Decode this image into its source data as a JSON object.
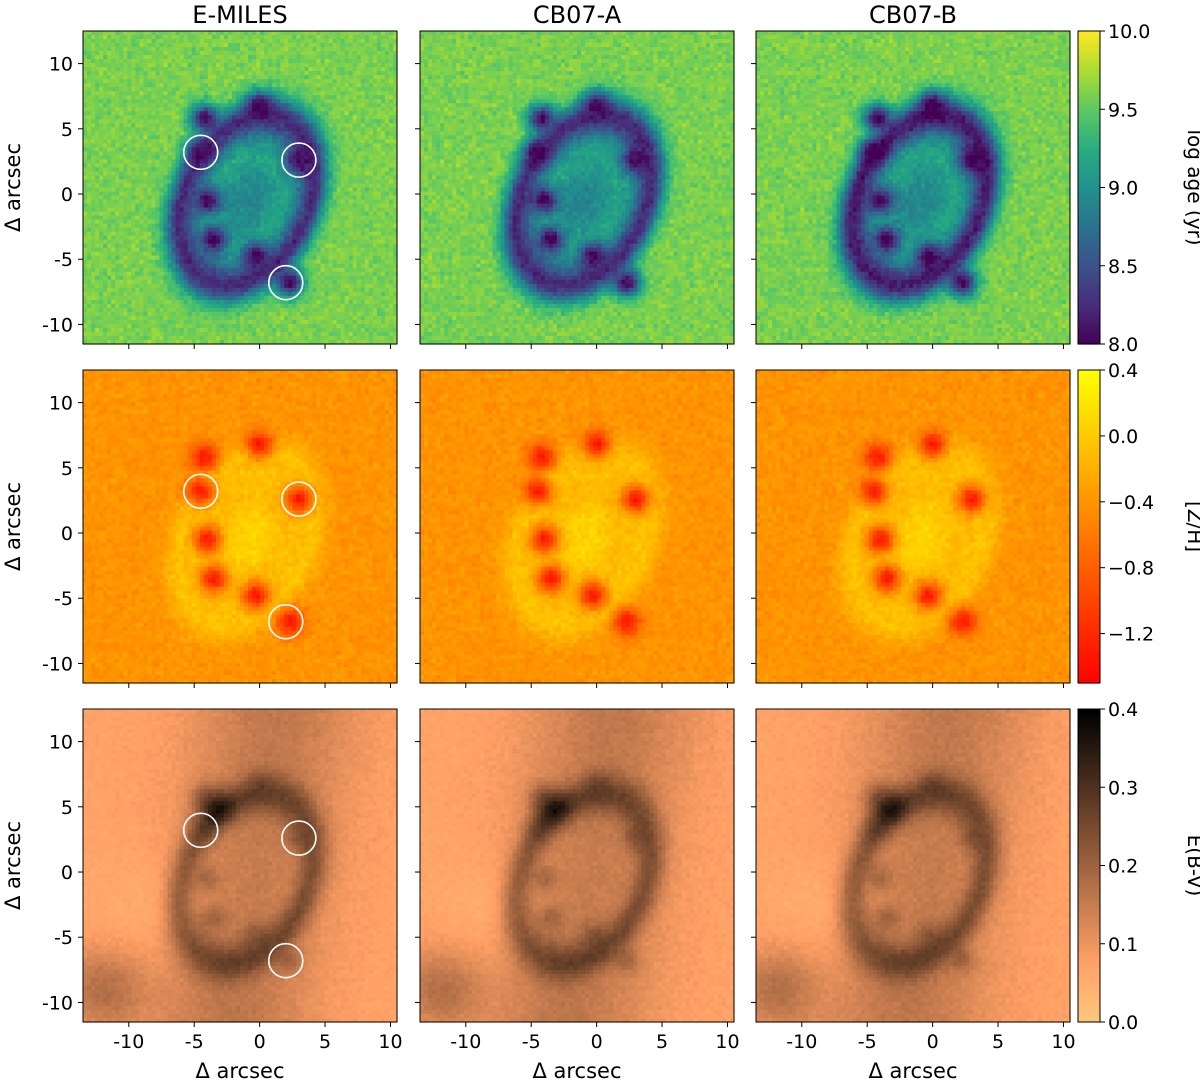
{
  "chart_data": {
    "type": "heatmap",
    "columns": [
      "E-MILES",
      "CB07-A",
      "CB07-B"
    ],
    "rows": [
      {
        "quantity": "log age",
        "colorbar_label": "log age (yr)",
        "colormap": "viridis",
        "vmin": 8.0,
        "vmax": 10.0,
        "ticks": [
          8.0,
          8.5,
          9.0,
          9.5,
          10.0
        ],
        "tick_labels": [
          "8.0",
          "8.5",
          "9.0",
          "9.5",
          "10.0"
        ],
        "background_level": 0.8,
        "center_level": 0.45,
        "ring_level": 0.12,
        "blob_level": 0.0
      },
      {
        "quantity": "[Z/H]",
        "colorbar_label": "[Z/H]",
        "colormap": "autumn",
        "vmin": -1.5,
        "vmax": 0.4,
        "ticks": [
          -1.2,
          -0.8,
          -0.4,
          0.0,
          0.4
        ],
        "tick_labels": [
          "−1.2",
          "−0.8",
          "−0.4",
          "0.0",
          "0.4"
        ],
        "background_level": 0.58,
        "center_level": 0.84,
        "ring_level": 0.76,
        "blob_level": 0.1
      },
      {
        "quantity": "E(B-V)",
        "colorbar_label": "E(B-V)",
        "colormap": "copper_r",
        "vmin": 0.0,
        "vmax": 0.4,
        "ticks": [
          0.0,
          0.1,
          0.2,
          0.3,
          0.4
        ],
        "tick_labels": [
          "0.0",
          "0.1",
          "0.2",
          "0.3",
          "0.4"
        ],
        "background_level": 0.18,
        "center_level": 0.42,
        "ring_level": 0.55,
        "blob_level": 0.85
      }
    ],
    "x_range": [
      -13.5,
      10.5
    ],
    "y_range": [
      -11.5,
      12.5
    ],
    "xticks": [
      -10,
      -5,
      0,
      5,
      10
    ],
    "yticks": [
      -10,
      -5,
      0,
      5,
      10
    ],
    "xlabel": "Δ arcsec",
    "ylabel": "Δ arcsec",
    "ring": {
      "center": [
        -1,
        -0.5
      ],
      "semi_axes": [
        4.7,
        6.8
      ],
      "rotation_deg": -25
    },
    "marked_regions": [
      {
        "x": -4.5,
        "y": 3.2
      },
      {
        "x": 3.0,
        "y": 2.6
      },
      {
        "x": 2.0,
        "y": -6.8
      }
    ],
    "marked_region_radius": 1.3,
    "marked_columns": [
      0
    ],
    "knots": [
      {
        "x": -4.5,
        "y": 3.2
      },
      {
        "x": 3.0,
        "y": 2.6
      },
      {
        "x": 2.3,
        "y": -6.8
      },
      {
        "x": 0.0,
        "y": 6.8
      },
      {
        "x": -4.2,
        "y": 5.8
      },
      {
        "x": -4.0,
        "y": -0.5
      },
      {
        "x": -0.3,
        "y": -4.8
      },
      {
        "x": -3.5,
        "y": -3.5
      }
    ]
  }
}
